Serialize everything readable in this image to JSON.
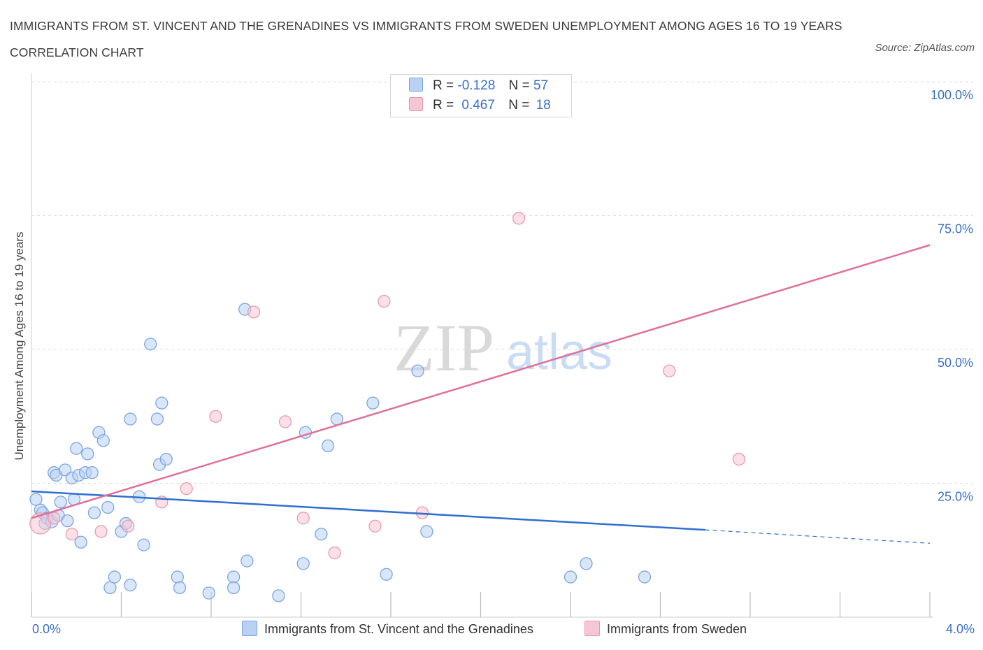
{
  "title": "IMMIGRANTS FROM ST. VINCENT AND THE GRENADINES VS IMMIGRANTS FROM SWEDEN UNEMPLOYMENT AMONG AGES 16 TO 19 YEARS CORRELATION CHART",
  "source": "Source: ZipAtlas.com",
  "watermark": {
    "zip": "ZIP",
    "atlas": "atlas"
  },
  "legend": {
    "r_label": "R =",
    "n_label": "N =",
    "rows": [
      {
        "r": "-0.128",
        "n": "57"
      },
      {
        "r": "0.467",
        "n": "18"
      }
    ]
  },
  "colors": {
    "blue_fill": "#b9d1f2",
    "blue_stroke": "#7aa6e3",
    "blue_line": "#2f6fcf",
    "pink_fill": "#f7c6d4",
    "pink_stroke": "#e89ab1",
    "pink_line": "#e0709a",
    "tick_text": "#3b6fc9",
    "grid": "#dddddd"
  },
  "chart_data": {
    "type": "scatter",
    "title": "IMMIGRANTS FROM ST. VINCENT AND THE GRENADINES VS IMMIGRANTS FROM SWEDEN UNEMPLOYMENT AMONG AGES 16 TO 19 YEARS CORRELATION CHART",
    "xlabel": "",
    "ylabel": "Unemployment Among Ages 16 to 19 years",
    "xlim": [
      0,
      4
    ],
    "ylim": [
      0,
      100
    ],
    "x_tick_labels": [
      "0.0%",
      "4.0%"
    ],
    "y_tick_labels": [
      "100.0%",
      "75.0%",
      "50.0%",
      "25.0%"
    ],
    "y_ticks": [
      100,
      75,
      50,
      25
    ],
    "grid": true,
    "legend_position": "top-center",
    "series": [
      {
        "name": "Immigrants from St. Vincent and the Grenadines",
        "color": "#7aa6e3",
        "points": [
          [
            0.02,
            22
          ],
          [
            0.04,
            20
          ],
          [
            0.05,
            19.5
          ],
          [
            0.06,
            17.5
          ],
          [
            0.07,
            18.5
          ],
          [
            0.09,
            17.8
          ],
          [
            0.1,
            27
          ],
          [
            0.11,
            26.5
          ],
          [
            0.12,
            19
          ],
          [
            0.13,
            21.5
          ],
          [
            0.15,
            27.5
          ],
          [
            0.16,
            18
          ],
          [
            0.18,
            26
          ],
          [
            0.19,
            22
          ],
          [
            0.2,
            31.5
          ],
          [
            0.21,
            26.5
          ],
          [
            0.22,
            14
          ],
          [
            0.24,
            27
          ],
          [
            0.25,
            30.5
          ],
          [
            0.27,
            27
          ],
          [
            0.28,
            19.5
          ],
          [
            0.3,
            34.5
          ],
          [
            0.32,
            33
          ],
          [
            0.34,
            20.5
          ],
          [
            0.35,
            5.5
          ],
          [
            0.37,
            7.5
          ],
          [
            0.4,
            16
          ],
          [
            0.42,
            17.5
          ],
          [
            0.44,
            37
          ],
          [
            0.44,
            6
          ],
          [
            0.48,
            22.5
          ],
          [
            0.5,
            13.5
          ],
          [
            0.53,
            51
          ],
          [
            0.56,
            37
          ],
          [
            0.57,
            28.5
          ],
          [
            0.58,
            40
          ],
          [
            0.6,
            29.5
          ],
          [
            0.65,
            7.5
          ],
          [
            0.66,
            5.5
          ],
          [
            0.79,
            4.5
          ],
          [
            0.9,
            7.5
          ],
          [
            0.9,
            5.5
          ],
          [
            0.95,
            57.5
          ],
          [
            0.96,
            10.5
          ],
          [
            1.1,
            4
          ],
          [
            1.21,
            10
          ],
          [
            1.22,
            34.5
          ],
          [
            1.29,
            15.5
          ],
          [
            1.32,
            32
          ],
          [
            1.36,
            37
          ],
          [
            1.52,
            40
          ],
          [
            1.58,
            8
          ],
          [
            1.72,
            46
          ],
          [
            1.76,
            16
          ],
          [
            2.4,
            7.5
          ],
          [
            2.47,
            10
          ],
          [
            2.73,
            7.5
          ]
        ]
      },
      {
        "name": "Immigrants from Sweden",
        "color": "#e89ab1",
        "points": [
          [
            0.04,
            17.5
          ],
          [
            0.1,
            18.5
          ],
          [
            0.18,
            15.5
          ],
          [
            0.31,
            16
          ],
          [
            0.43,
            17
          ],
          [
            0.58,
            21.5
          ],
          [
            0.69,
            24
          ],
          [
            0.82,
            37.5
          ],
          [
            0.99,
            57
          ],
          [
            1.13,
            36.5
          ],
          [
            1.21,
            18.5
          ],
          [
            1.35,
            12
          ],
          [
            1.53,
            17
          ],
          [
            1.57,
            59
          ],
          [
            1.74,
            19.5
          ],
          [
            2.17,
            74.5
          ],
          [
            2.84,
            46
          ],
          [
            3.15,
            29.5
          ]
        ]
      }
    ],
    "trend_lines": [
      {
        "series": "Immigrants from St. Vincent and the Grenadines",
        "x0": 0,
        "y0": 23.5,
        "x1": 3.0,
        "y1": 16.3,
        "dashed_to_x": 4.0,
        "dashed_to_y": 13.8
      },
      {
        "series": "Immigrants from Sweden",
        "x0": 0,
        "y0": 18.5,
        "x1": 4.0,
        "y1": 69.5
      }
    ]
  }
}
